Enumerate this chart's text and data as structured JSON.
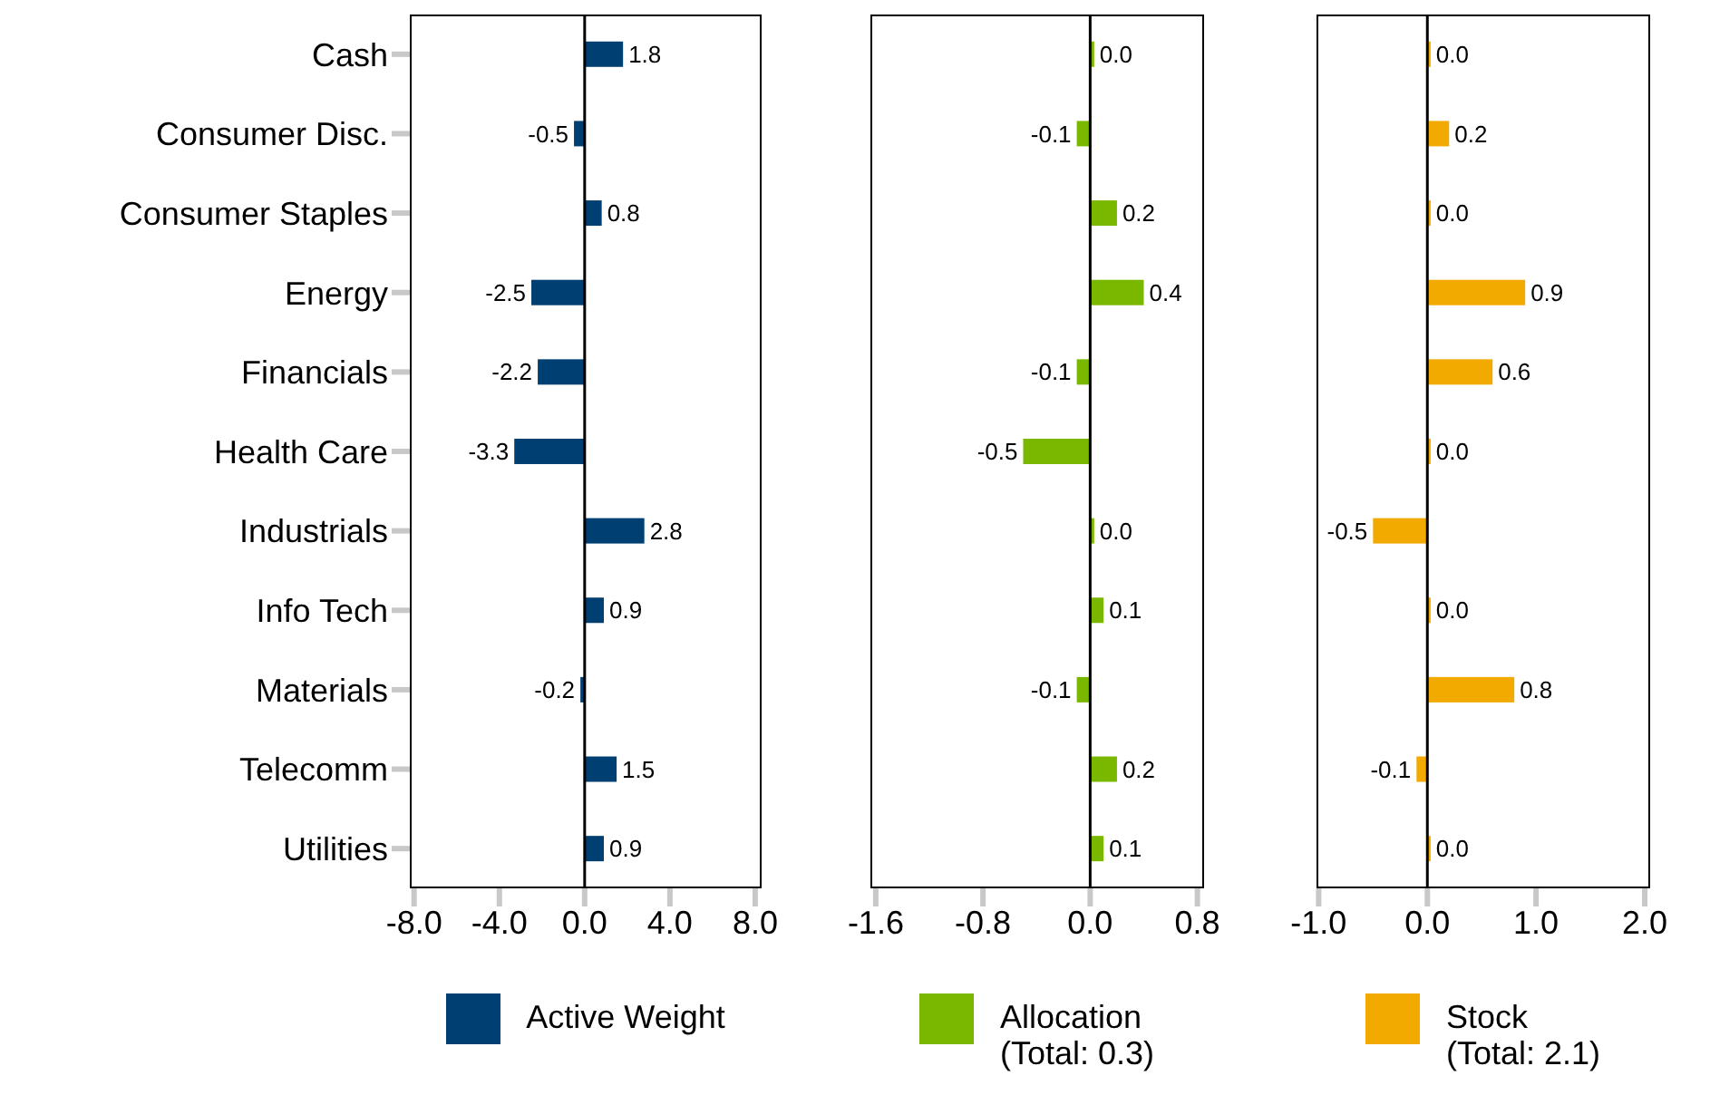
{
  "chart_data": [
    {
      "type": "bar",
      "orientation": "horizontal",
      "categories": [
        "Cash",
        "Consumer Disc.",
        "Consumer Staples",
        "Energy",
        "Financials",
        "Health Care",
        "Industrials",
        "Info Tech",
        "Materials",
        "Telecomm",
        "Utilities"
      ],
      "series": [
        {
          "name": "Active Weight",
          "color": "#003f72",
          "values": [
            1.8,
            -0.5,
            0.8,
            -2.5,
            -2.2,
            -3.3,
            2.8,
            0.9,
            -0.2,
            1.5,
            0.9
          ],
          "value_labels": [
            "1.8",
            "-0.5",
            "0.8",
            "-2.5",
            "-2.2",
            "-3.3",
            "2.8",
            "0.9",
            "-0.2",
            "1.5",
            "0.9"
          ]
        }
      ],
      "xlim": [
        -8.2,
        8.3
      ],
      "xticks": [
        {
          "value": -8,
          "label": "-8.0"
        },
        {
          "value": -4,
          "label": "-4.0"
        },
        {
          "value": 0,
          "label": "0.0"
        },
        {
          "value": 4,
          "label": "4.0"
        },
        {
          "value": 8,
          "label": "8.0"
        }
      ],
      "ref_lines": [
        {
          "axis": "x",
          "value": 0,
          "color": "#000000"
        }
      ],
      "legend": "bottom"
    },
    {
      "type": "bar",
      "orientation": "horizontal",
      "categories": [
        null,
        null,
        null,
        null,
        null,
        null,
        null,
        null,
        null,
        null,
        null
      ],
      "series": [
        {
          "name": "Allocation\n(Total: 0.3)",
          "color": "#7ab800",
          "values": [
            0.03,
            -0.1,
            0.2,
            0.4,
            -0.1,
            -0.5,
            0.03,
            0.1,
            -0.1,
            0.2,
            0.1
          ],
          "value_labels": [
            "0.0",
            "-0.1",
            "0.2",
            "0.4",
            "-0.1",
            "-0.5",
            "0.0",
            "0.1",
            "-0.1",
            "0.2",
            "0.1"
          ]
        }
      ],
      "xlim": [
        -1.64,
        0.85
      ],
      "xticks": [
        {
          "value": -1.6,
          "label": "-1.6"
        },
        {
          "value": -0.8,
          "label": "-0.8"
        },
        {
          "value": 0,
          "label": "0.0"
        },
        {
          "value": 0.8,
          "label": "0.8"
        }
      ],
      "ref_lines": [
        {
          "axis": "x",
          "value": 0,
          "color": "#000000"
        }
      ],
      "legend": "bottom",
      "tick_labels": "x"
    },
    {
      "type": "bar",
      "orientation": "horizontal",
      "categories": [
        null,
        null,
        null,
        null,
        null,
        null,
        null,
        null,
        null,
        null,
        null
      ],
      "series": [
        {
          "name": "Stock\n(Total: 2.1)",
          "color": "#f2a900",
          "values": [
            0.03,
            0.2,
            0.03,
            0.9,
            0.6,
            0.03,
            -0.5,
            0.03,
            0.8,
            -0.1,
            0.03
          ],
          "value_labels": [
            "0.0",
            "0.2",
            "0.0",
            "0.9",
            "0.6",
            "0.0",
            "-0.5",
            "0.0",
            "0.8",
            "-0.1",
            "0.0"
          ]
        }
      ],
      "xlim": [
        -1.02,
        2.05
      ],
      "xticks": [
        {
          "value": -1,
          "label": "-1.0"
        },
        {
          "value": 0,
          "label": "0.0"
        },
        {
          "value": 1,
          "label": "1.0"
        },
        {
          "value": 2,
          "label": "2.0"
        }
      ],
      "ref_lines": [
        {
          "axis": "x",
          "value": 0,
          "color": "#000000"
        }
      ],
      "legend": "bottom",
      "tick_labels": "x"
    }
  ]
}
